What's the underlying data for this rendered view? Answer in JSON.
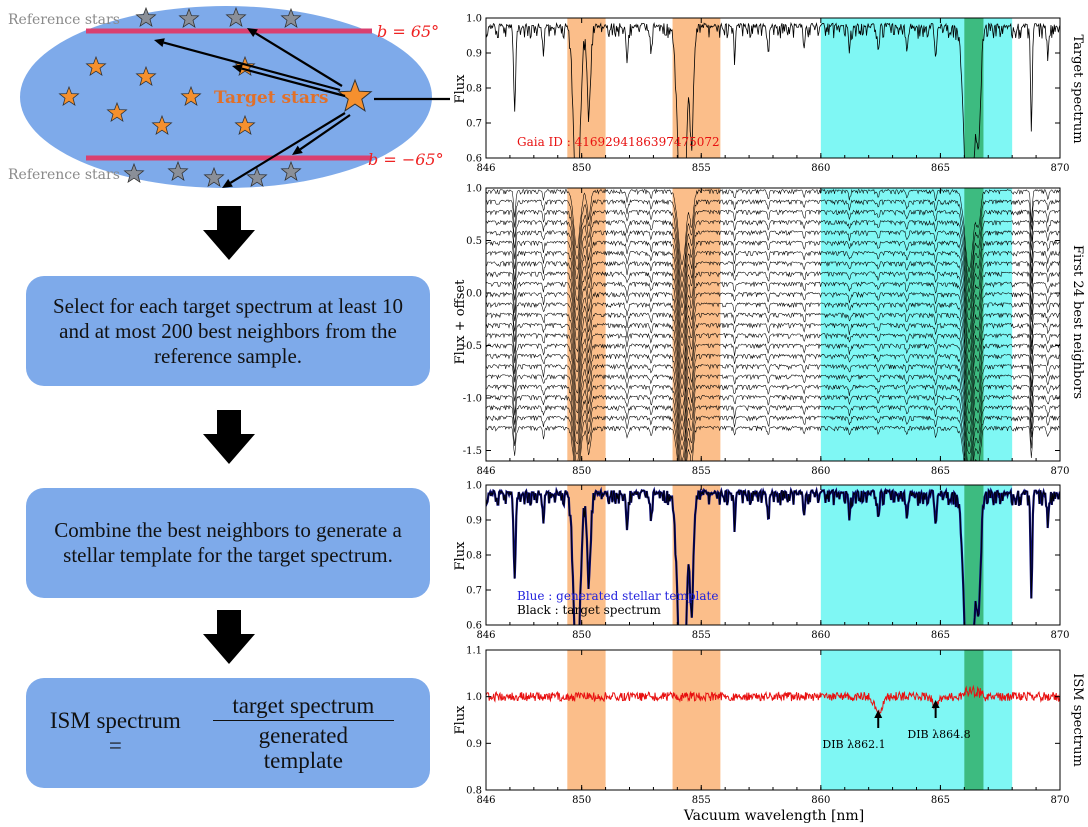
{
  "schematic": {
    "reference_label_top": "Reference stars",
    "reference_label_bottom": "Reference stars",
    "target_label": "Target stars",
    "b_top": "b = 65°",
    "b_bottom": "b = −65°"
  },
  "steps": {
    "step1": "Select for each target spectrum at least 10 and at most 200 best neighbors from the reference sample.",
    "step2": "Combine the best neighbors to generate a stellar template for the target spectrum.",
    "step3_lhs": "ISM spectrum =",
    "step3_num": "target spectrum",
    "step3_den": "generated template"
  },
  "colors": {
    "ellipse": "#7eaaea",
    "box": "#7eaaea",
    "orange_band": "#fbbe8a",
    "cyan_band": "#7ff7f4",
    "green_band": "#3dbb80",
    "star_orange": "#f5902e",
    "star_gray": "#8a8f98",
    "target_text": "#e0702a",
    "b_text": "#ee2222",
    "reference_text": "#8a8a8a",
    "template_blue": "#0c0c7a",
    "ism_red": "#e81010"
  },
  "chart_data": [
    {
      "type": "line",
      "name": "panel-target",
      "xlim": [
        846,
        870
      ],
      "ylim": [
        0.6,
        1.0
      ],
      "xticks": [
        846,
        850,
        855,
        860,
        865,
        870
      ],
      "yticks": [
        0.6,
        0.7,
        0.8,
        0.9,
        1.0
      ],
      "ylabel": "Flux",
      "right_label": "Target spectrum",
      "annotation": "Gaia ID :  4169294186397475072",
      "bands": {
        "orange": [
          [
            849.4,
            851.0
          ],
          [
            853.8,
            855.8
          ]
        ],
        "cyan": [
          [
            860.0,
            868.0
          ]
        ],
        "green": [
          [
            866.0,
            866.8
          ]
        ]
      }
    },
    {
      "type": "line",
      "name": "panel-neighbors",
      "xlim": [
        846,
        870
      ],
      "ylim": [
        -1.6,
        1.0
      ],
      "xticks": [
        846,
        850,
        855,
        860,
        865,
        870
      ],
      "yticks": [
        -1.5,
        -1.0,
        -0.5,
        0.0,
        0.5,
        1.0
      ],
      "ylabel": "Flux + offset",
      "right_label": "First 24 best neighbors",
      "n_curves": 24
    },
    {
      "type": "line",
      "name": "panel-template",
      "xlim": [
        846,
        870
      ],
      "ylim": [
        0.6,
        1.0
      ],
      "xticks": [
        846,
        850,
        855,
        860,
        865,
        870
      ],
      "yticks": [
        0.6,
        0.7,
        0.8,
        0.9,
        1.0
      ],
      "ylabel": "Flux",
      "legend_blue": "Blue :  generated stellar template",
      "legend_black": "Black :  target spectrum"
    },
    {
      "type": "line",
      "name": "panel-ism",
      "xlim": [
        846,
        870
      ],
      "ylim": [
        0.8,
        1.1
      ],
      "xticks": [
        846,
        850,
        855,
        860,
        865,
        870
      ],
      "yticks": [
        0.8,
        0.9,
        1.0,
        1.1
      ],
      "ylabel": "Flux",
      "xlabel": "Vacuum wavelength [nm]",
      "right_label": "ISM spectrum",
      "dib1": "DIB λ862.1",
      "dib2": "DIB λ864.8",
      "dib_positions": [
        862.4,
        864.8
      ]
    }
  ]
}
